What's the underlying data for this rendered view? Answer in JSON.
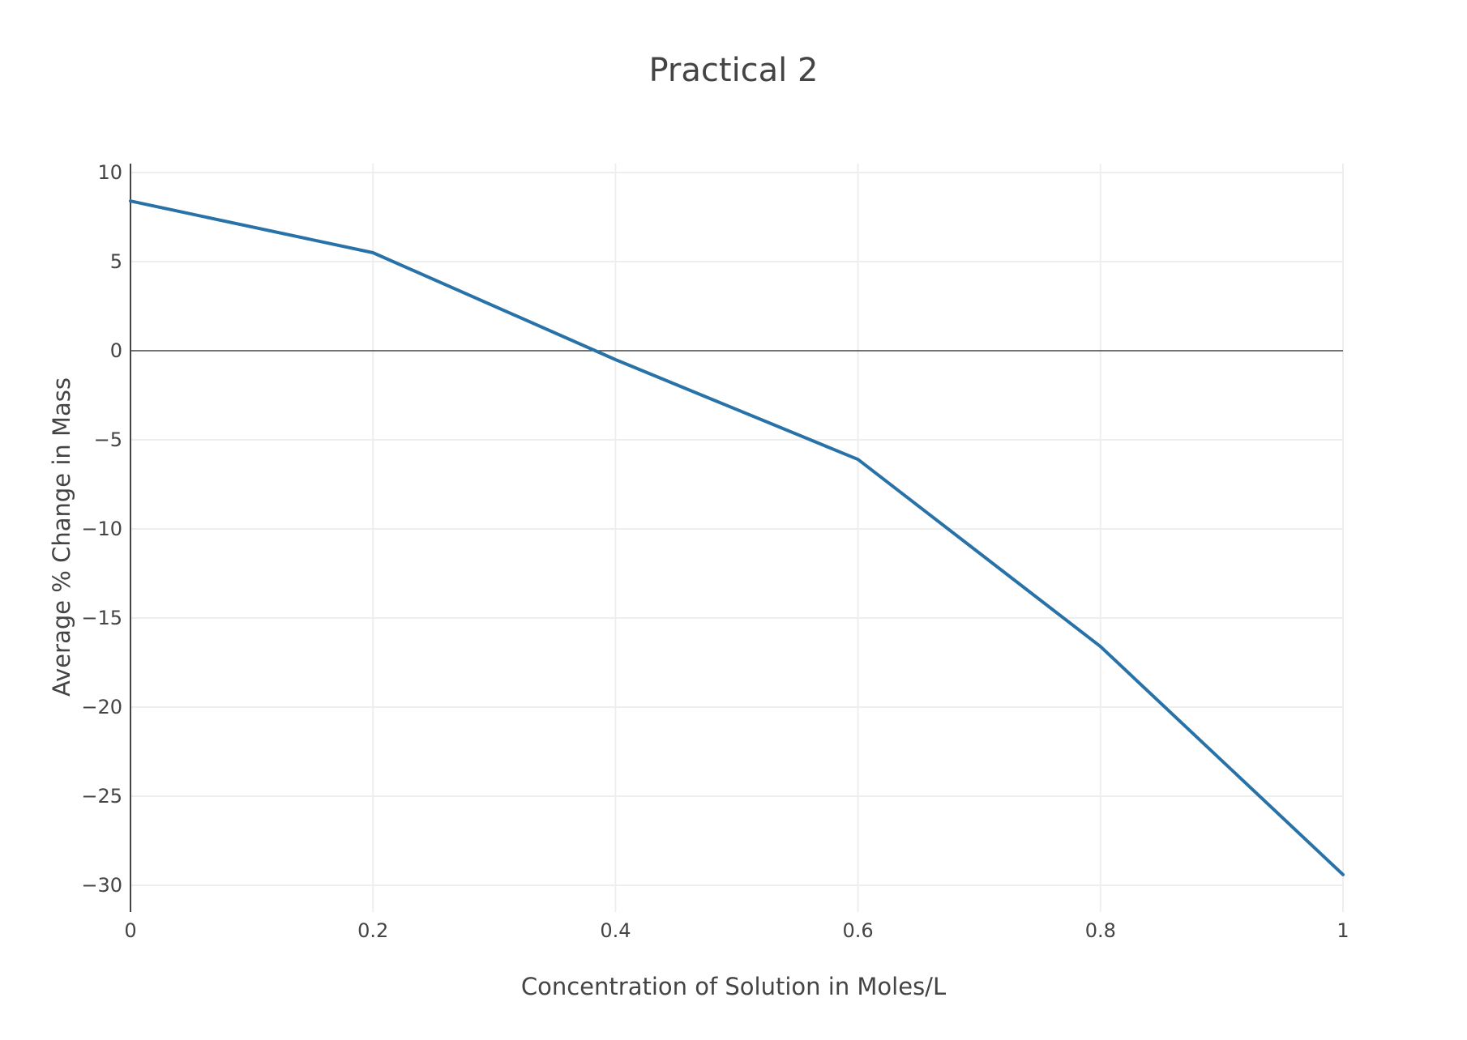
{
  "chart_data": {
    "type": "line",
    "title": "Practical 2",
    "xlabel": "Concentration of Solution in Moles/L",
    "ylabel": "Average % Change in Mass",
    "xlim": [
      0,
      1
    ],
    "ylim": [
      -31.5,
      10.5
    ],
    "x_ticks": [
      0,
      0.2,
      0.4,
      0.6,
      0.8,
      1
    ],
    "x_tick_labels": [
      "0",
      "0.2",
      "0.4",
      "0.6",
      "0.8",
      "1"
    ],
    "y_ticks": [
      10,
      5,
      0,
      -5,
      -10,
      -15,
      -20,
      -25,
      -30
    ],
    "y_tick_labels": [
      "10",
      "5",
      "0",
      "−5",
      "−10",
      "−15",
      "−20",
      "−25",
      "−30"
    ],
    "grid": true,
    "zeroline": true,
    "series": [
      {
        "color": "#2872a8",
        "x": [
          0,
          0.2,
          0.4,
          0.6,
          0.8,
          1
        ],
        "y": [
          8.4,
          5.5,
          -0.5,
          -6.1,
          -16.6,
          -29.4
        ]
      }
    ]
  }
}
